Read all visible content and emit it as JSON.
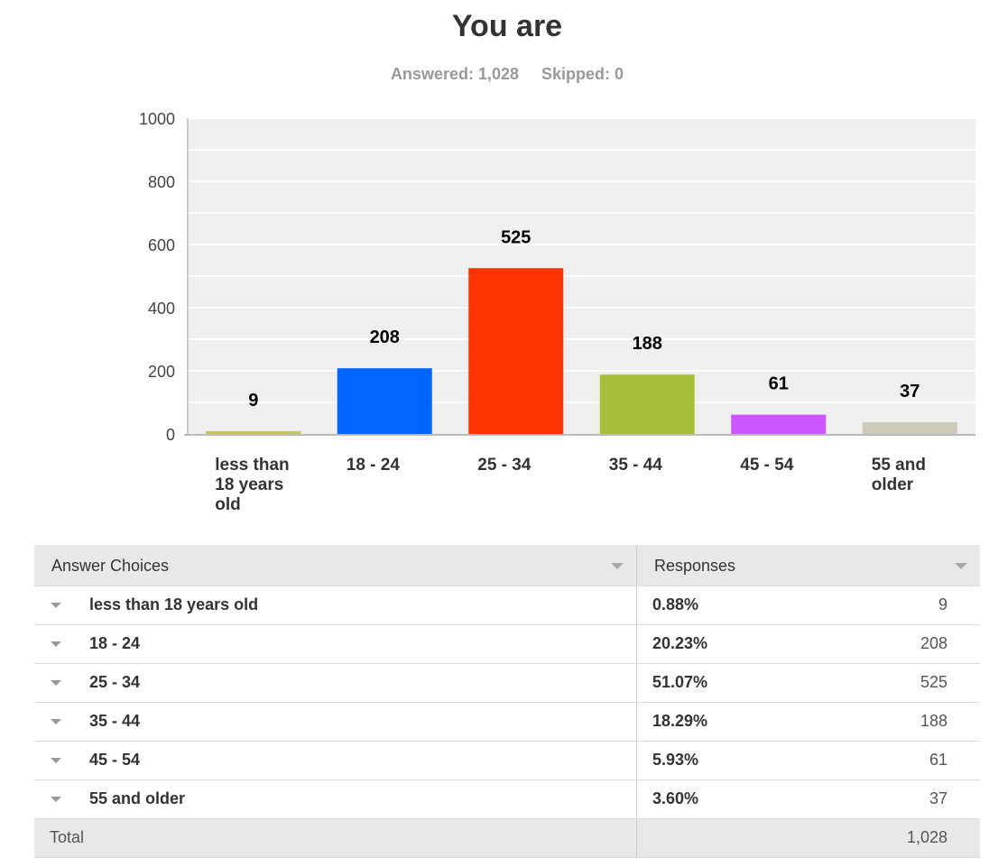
{
  "title": "You are",
  "answered": "Answered: 1,028",
  "skipped": "Skipped: 0",
  "colors": {
    "plot_bg": "#efefef",
    "grid": "#ffffff",
    "bars": [
      "#c9c55d",
      "#0066ff",
      "#ff3300",
      "#a6c03c",
      "#cc55ff",
      "#cccab8"
    ]
  },
  "chart_data": {
    "type": "bar",
    "categories": [
      "less than 18 years old",
      "18 - 24",
      "25 - 34",
      "35 - 44",
      "45 - 54",
      "55 and older"
    ],
    "category_lines": [
      [
        "less than",
        "18 years",
        "old"
      ],
      [
        "18 - 24"
      ],
      [
        "25 - 34"
      ],
      [
        "35 - 44"
      ],
      [
        "45 - 54"
      ],
      [
        "55 and",
        "older"
      ]
    ],
    "values": [
      9,
      208,
      525,
      188,
      61,
      37
    ],
    "ylim": [
      0,
      1000
    ],
    "yticks": [
      0,
      200,
      400,
      600,
      800,
      1000
    ],
    "grid": true,
    "data_labels": true
  },
  "table": {
    "headers": {
      "choices": "Answer Choices",
      "responses": "Responses"
    },
    "rows": [
      {
        "label": "less than 18 years old",
        "pct": "0.88%",
        "count": "9"
      },
      {
        "label": "18 - 24",
        "pct": "20.23%",
        "count": "208"
      },
      {
        "label": "25 - 34",
        "pct": "51.07%",
        "count": "525"
      },
      {
        "label": "35 - 44",
        "pct": "18.29%",
        "count": "188"
      },
      {
        "label": "45 - 54",
        "pct": "5.93%",
        "count": "61"
      },
      {
        "label": "55 and older",
        "pct": "3.60%",
        "count": "37"
      }
    ],
    "total_label": "Total",
    "total_count": "1,028"
  }
}
